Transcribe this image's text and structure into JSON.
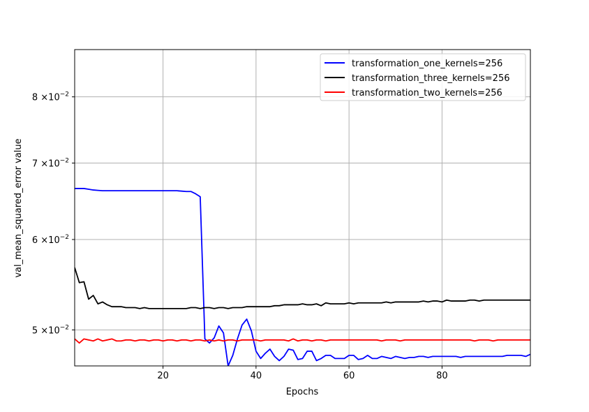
{
  "chart_data": {
    "type": "line",
    "title": "",
    "xlabel": "Epochs",
    "ylabel": "val_mean_squared_error value",
    "yscale": "log",
    "xlim": [
      1,
      99
    ],
    "ylim": [
      0.0465,
      0.088
    ],
    "xticks": [
      20,
      40,
      60,
      80
    ],
    "yticks": [
      {
        "value": 0.05,
        "mantissa": "5",
        "exp": "−2"
      },
      {
        "value": 0.06,
        "mantissa": "6",
        "exp": "−2"
      },
      {
        "value": 0.07,
        "mantissa": "7",
        "exp": "−2"
      },
      {
        "value": 0.08,
        "mantissa": "8",
        "exp": "−2"
      }
    ],
    "tick_times": "×10",
    "grid": true,
    "legend_position": "top-right",
    "series": [
      {
        "name": "transformation_one_kernels=256",
        "color": "#0000ff",
        "x": [
          1,
          2,
          3,
          4,
          5,
          6,
          7,
          8,
          9,
          10,
          11,
          12,
          13,
          14,
          15,
          16,
          17,
          18,
          19,
          20,
          21,
          22,
          23,
          24,
          25,
          26,
          27,
          28,
          29,
          30,
          31,
          32,
          33,
          34,
          35,
          36,
          37,
          38,
          39,
          40,
          41,
          42,
          43,
          44,
          45,
          46,
          47,
          48,
          49,
          50,
          51,
          52,
          53,
          54,
          55,
          56,
          57,
          58,
          59,
          60,
          61,
          62,
          63,
          64,
          65,
          66,
          67,
          68,
          69,
          70,
          71,
          72,
          73,
          74,
          75,
          76,
          77,
          78,
          79,
          80,
          81,
          82,
          83,
          84,
          85,
          86,
          87,
          88,
          89,
          90,
          91,
          92,
          93,
          94,
          95,
          96,
          97,
          98,
          99
        ],
        "values": [
          0.0665,
          0.0665,
          0.0665,
          0.0664,
          0.0663,
          0.06625,
          0.0662,
          0.0662,
          0.0662,
          0.0662,
          0.0662,
          0.0662,
          0.0662,
          0.0662,
          0.0662,
          0.0662,
          0.0662,
          0.0662,
          0.0662,
          0.0662,
          0.0662,
          0.0662,
          0.0662,
          0.06615,
          0.0661,
          0.0661,
          0.0658,
          0.0654,
          0.0491,
          0.0487,
          0.0492,
          0.0504,
          0.0497,
          0.0465,
          0.0475,
          0.0491,
          0.0505,
          0.0511,
          0.0499,
          0.0479,
          0.0472,
          0.0477,
          0.0481,
          0.0474,
          0.047,
          0.0474,
          0.0481,
          0.048,
          0.0471,
          0.0472,
          0.0479,
          0.0479,
          0.047,
          0.0472,
          0.0475,
          0.0475,
          0.0472,
          0.0472,
          0.0472,
          0.0475,
          0.0475,
          0.0471,
          0.0472,
          0.0475,
          0.0472,
          0.0472,
          0.0474,
          0.0473,
          0.0472,
          0.0474,
          0.0473,
          0.0472,
          0.0473,
          0.0473,
          0.0474,
          0.0474,
          0.0473,
          0.0474,
          0.0474,
          0.0474,
          0.0474,
          0.0474,
          0.0474,
          0.0473,
          0.0474,
          0.0474,
          0.0474,
          0.0474,
          0.0474,
          0.0474,
          0.0474,
          0.0474,
          0.0474,
          0.0475,
          0.0475,
          0.0475,
          0.0475,
          0.0474,
          0.0476
        ]
      },
      {
        "name": "transformation_three_kernels=256",
        "color": "#000000",
        "x": [
          1,
          2,
          3,
          4,
          5,
          6,
          7,
          8,
          9,
          10,
          11,
          12,
          13,
          14,
          15,
          16,
          17,
          18,
          19,
          20,
          21,
          22,
          23,
          24,
          25,
          26,
          27,
          28,
          29,
          30,
          31,
          32,
          33,
          34,
          35,
          36,
          37,
          38,
          39,
          40,
          41,
          42,
          43,
          44,
          45,
          46,
          47,
          48,
          49,
          50,
          51,
          52,
          53,
          54,
          55,
          56,
          57,
          58,
          59,
          60,
          61,
          62,
          63,
          64,
          65,
          66,
          67,
          68,
          69,
          70,
          71,
          72,
          73,
          74,
          75,
          76,
          77,
          78,
          79,
          80,
          81,
          82,
          83,
          84,
          85,
          86,
          87,
          88,
          89,
          90,
          91,
          92,
          93,
          94,
          95,
          96,
          97,
          98,
          99
        ],
        "values": [
          0.0567,
          0.055,
          0.0551,
          0.0532,
          0.0536,
          0.0527,
          0.0529,
          0.0526,
          0.0524,
          0.0524,
          0.0524,
          0.0523,
          0.0523,
          0.0523,
          0.0522,
          0.0523,
          0.0522,
          0.0522,
          0.0522,
          0.0522,
          0.0522,
          0.0522,
          0.0522,
          0.0522,
          0.0522,
          0.0523,
          0.0523,
          0.0522,
          0.0523,
          0.0523,
          0.0522,
          0.0523,
          0.0523,
          0.0522,
          0.0523,
          0.0523,
          0.0523,
          0.0524,
          0.0524,
          0.0524,
          0.0524,
          0.0524,
          0.0524,
          0.0525,
          0.0525,
          0.0526,
          0.0526,
          0.0526,
          0.0526,
          0.0527,
          0.0526,
          0.0526,
          0.0527,
          0.0525,
          0.0528,
          0.0527,
          0.0527,
          0.0527,
          0.0527,
          0.0528,
          0.0527,
          0.0528,
          0.0528,
          0.0528,
          0.0528,
          0.0528,
          0.0528,
          0.0529,
          0.0528,
          0.0529,
          0.0529,
          0.0529,
          0.0529,
          0.0529,
          0.0529,
          0.053,
          0.0529,
          0.053,
          0.053,
          0.0529,
          0.0531,
          0.053,
          0.053,
          0.053,
          0.053,
          0.0531,
          0.0531,
          0.053,
          0.0531,
          0.0531,
          0.0531,
          0.0531,
          0.0531,
          0.0531,
          0.0531,
          0.0531,
          0.0531,
          0.0531,
          0.0531
        ]
      },
      {
        "name": "transformation_two_kernels=256",
        "color": "#ff0000",
        "x": [
          1,
          2,
          3,
          4,
          5,
          6,
          7,
          8,
          9,
          10,
          11,
          12,
          13,
          14,
          15,
          16,
          17,
          18,
          19,
          20,
          21,
          22,
          23,
          24,
          25,
          26,
          27,
          28,
          29,
          30,
          31,
          32,
          33,
          34,
          35,
          36,
          37,
          38,
          39,
          40,
          41,
          42,
          43,
          44,
          45,
          46,
          47,
          48,
          49,
          50,
          51,
          52,
          53,
          54,
          55,
          56,
          57,
          58,
          59,
          60,
          61,
          62,
          63,
          64,
          65,
          66,
          67,
          68,
          69,
          70,
          71,
          72,
          73,
          74,
          75,
          76,
          77,
          78,
          79,
          80,
          81,
          82,
          83,
          84,
          85,
          86,
          87,
          88,
          89,
          90,
          91,
          92,
          93,
          94,
          95,
          96,
          97,
          98,
          99
        ],
        "values": [
          0.0491,
          0.0487,
          0.0491,
          0.049,
          0.0489,
          0.0491,
          0.0489,
          0.049,
          0.0491,
          0.0489,
          0.0489,
          0.049,
          0.049,
          0.0489,
          0.049,
          0.049,
          0.0489,
          0.049,
          0.049,
          0.0489,
          0.049,
          0.049,
          0.0489,
          0.049,
          0.049,
          0.0489,
          0.049,
          0.049,
          0.0489,
          0.049,
          0.0489,
          0.049,
          0.0489,
          0.049,
          0.049,
          0.0489,
          0.049,
          0.049,
          0.049,
          0.049,
          0.0489,
          0.049,
          0.049,
          0.049,
          0.049,
          0.049,
          0.0489,
          0.0491,
          0.0489,
          0.049,
          0.049,
          0.0489,
          0.049,
          0.049,
          0.0489,
          0.049,
          0.049,
          0.049,
          0.049,
          0.049,
          0.049,
          0.049,
          0.049,
          0.049,
          0.049,
          0.049,
          0.0489,
          0.049,
          0.049,
          0.049,
          0.0489,
          0.049,
          0.049,
          0.049,
          0.049,
          0.049,
          0.049,
          0.049,
          0.049,
          0.049,
          0.049,
          0.049,
          0.049,
          0.049,
          0.049,
          0.049,
          0.0489,
          0.049,
          0.049,
          0.049,
          0.0489,
          0.049,
          0.049,
          0.049,
          0.049,
          0.049,
          0.049,
          0.049,
          0.049
        ]
      }
    ]
  }
}
